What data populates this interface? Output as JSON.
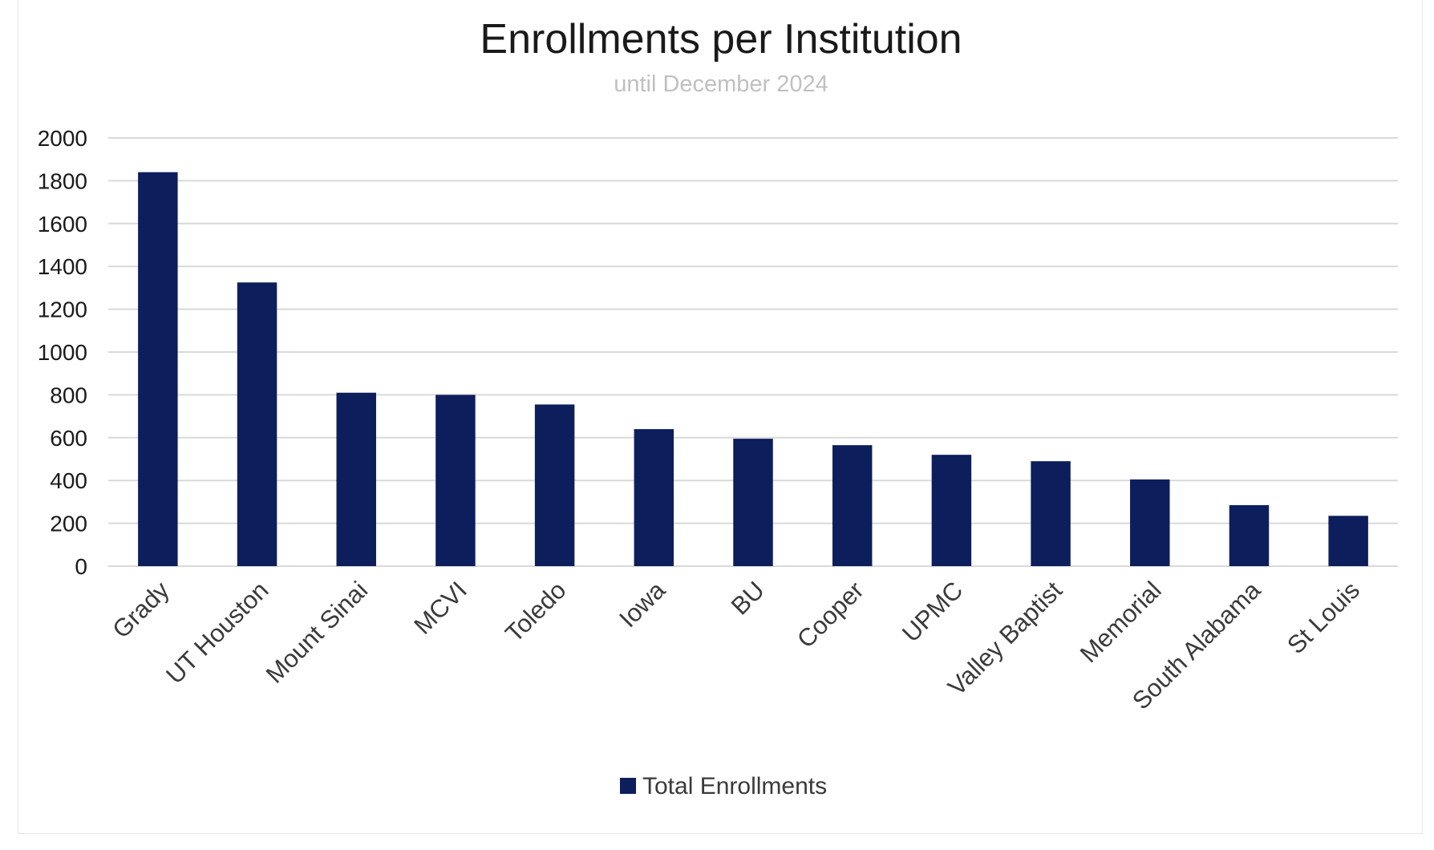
{
  "chart_data": {
    "type": "bar",
    "title": "Enrollments per Institution",
    "subtitle": "until December 2024",
    "xlabel": "",
    "ylabel": "",
    "ylim": [
      0,
      2000
    ],
    "yticks": [
      0,
      200,
      400,
      600,
      800,
      1000,
      1200,
      1400,
      1600,
      1800,
      2000
    ],
    "grid": true,
    "legend_position": "bottom",
    "categories": [
      "Grady",
      "UT Houston",
      "Mount Sinai",
      "MCVI",
      "Toledo",
      "Iowa",
      "BU",
      "Cooper",
      "UPMC",
      "Valley Baptist",
      "Memorial",
      "South Alabama",
      "St Louis"
    ],
    "series": [
      {
        "name": "Total Enrollments",
        "color": "#0c1f5c",
        "values": [
          1840,
          1325,
          810,
          800,
          755,
          640,
          595,
          565,
          520,
          490,
          405,
          285,
          235
        ]
      }
    ]
  }
}
